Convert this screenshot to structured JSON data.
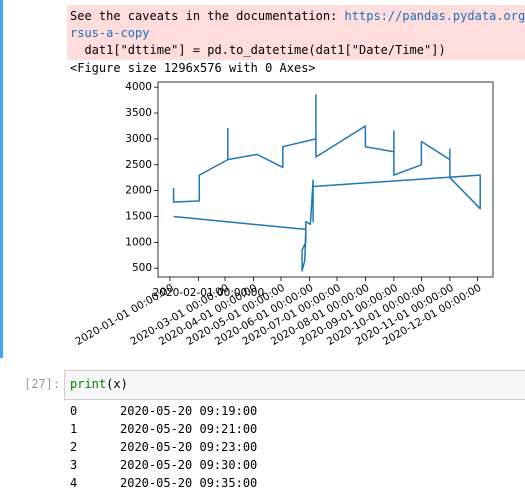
{
  "warning": {
    "text": "See the caveats in the documentation: ",
    "link_line1": "https://pandas.pydata.org/",
    "link_line2": "rsus-a-copy",
    "code": "  dat1[\"dttime\"] = pd.to_datetime(dat1[\"Date/Time\"])"
  },
  "figure_text": "<Figure size 1296x576 with 0 Axes>",
  "chart_data": {
    "type": "line",
    "x": [
      "2020-01-05",
      "2020-01-05",
      "2020-02-02",
      "2020-02-02",
      "2020-03-04",
      "2020-03-04",
      "2020-03-04",
      "2020-04-05",
      "2020-05-03",
      "2020-05-03",
      "2020-06-08",
      "2020-06-08",
      "2020-06-08",
      "2020-08-01",
      "2020-08-01",
      "2020-09-01",
      "2020-09-01",
      "2020-09-01",
      "2020-10-01",
      "2020-10-01",
      "2020-11-01",
      "2020-11-01",
      "2020-11-01",
      "2020-12-04",
      "2020-12-04",
      "2020-06-05",
      "2020-06-05",
      "2020-06-05",
      "2020-06-02",
      "2020-05-28",
      "2020-05-28",
      "2020-05-24",
      "2020-05-24",
      "2020-05-27",
      "2020-05-28",
      "2020-01-05"
    ],
    "series": [
      {
        "color": "#1f77b4",
        "values": [
          2050,
          1780,
          1800,
          2300,
          2600,
          3200,
          2600,
          2700,
          2450,
          2850,
          3000,
          3850,
          2650,
          3250,
          2850,
          2750,
          3150,
          2300,
          2500,
          2950,
          2600,
          2800,
          2250,
          1650,
          2300,
          2080,
          1400,
          2200,
          1350,
          1400,
          1000,
          850,
          450,
          650,
          1250,
          1500
        ]
      }
    ],
    "xlim": [
      "2019-12-19",
      "2020-12-18"
    ],
    "xticks": [
      {
        "value": "2020-01-01",
        "label": "2020-01-01 00:00:00"
      },
      {
        "value": "2020-02-01",
        "label": "2020-02-01 00:00:00"
      },
      {
        "value": "2020-03-01",
        "label": "2020-03-01 00:00:00"
      },
      {
        "value": "2020-04-01",
        "label": "2020-04-01 00:00:00"
      },
      {
        "value": "2020-05-01",
        "label": "2020-05-01 00:00:00"
      },
      {
        "value": "2020-06-01",
        "label": "2020-06-01 00:00:00"
      },
      {
        "value": "2020-07-01",
        "label": "2020-07-01 00:00:00"
      },
      {
        "value": "2020-08-01",
        "label": "2020-08-01 00:00:00"
      },
      {
        "value": "2020-09-01",
        "label": "2020-09-01 00:00:00"
      },
      {
        "value": "2020-10-01",
        "label": "2020-10-01 00:00:00"
      },
      {
        "value": "2020-11-01",
        "label": "2020-11-01 00:00:00"
      },
      {
        "value": "2020-12-01",
        "label": "2020-12-01 00:00:00"
      }
    ],
    "ylim": [
      330,
      4100
    ],
    "yticks": [
      500,
      1000,
      1500,
      2000,
      2500,
      3000,
      3500,
      4000
    ]
  },
  "cell": {
    "prompt": "[27]:",
    "code_fn": "print",
    "code_args": "(x)"
  },
  "output": {
    "rows": [
      [
        0,
        "2020-05-20 09:19:00"
      ],
      [
        1,
        "2020-05-20 09:21:00"
      ],
      [
        2,
        "2020-05-20 09:23:00"
      ],
      [
        3,
        "2020-05-20 09:30:00"
      ],
      [
        4,
        "2020-05-20 09:35:00"
      ]
    ]
  }
}
